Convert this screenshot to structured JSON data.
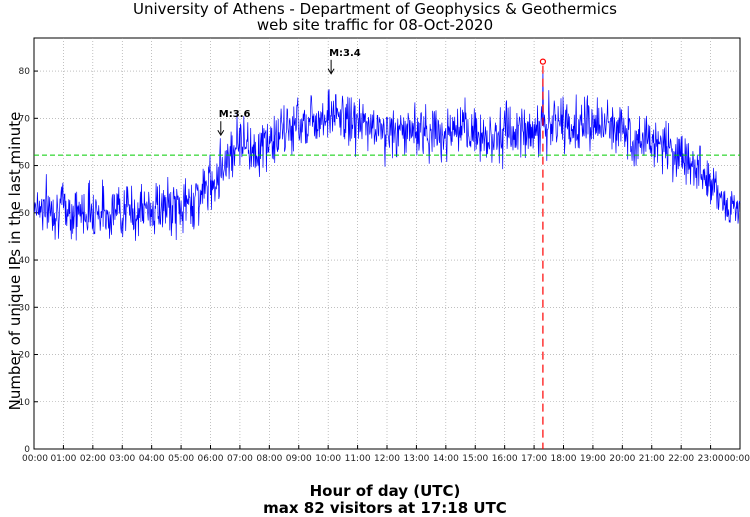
{
  "chart_data": {
    "type": "line",
    "title": "University of Athens - Department of Geophysics & Geothermics",
    "subtitle": "web site traffic for 08-Oct-2020",
    "xlabel": "Hour of day (UTC)",
    "xlabel_sub": "max 82 visitors at 17:18 UTC",
    "ylabel": "Number of unique IPs in the last minute",
    "ylim": [
      0,
      87
    ],
    "xlim": [
      0,
      24
    ],
    "yticks": [
      0,
      10,
      20,
      30,
      40,
      50,
      60,
      70,
      80
    ],
    "xticks": [
      "00:00",
      "01:00",
      "02:00",
      "03:00",
      "04:00",
      "05:00",
      "06:00",
      "07:00",
      "08:00",
      "09:00",
      "10:00",
      "11:00",
      "12:00",
      "13:00",
      "14:00",
      "15:00",
      "16:00",
      "17:00",
      "18:00",
      "19:00",
      "20:00",
      "21:00",
      "22:00",
      "23:00",
      "00:00"
    ],
    "grid": true,
    "series": [
      {
        "color": "#0000ff",
        "hours": [
          0,
          0.5,
          1,
          1.5,
          2,
          2.5,
          3,
          3.5,
          4,
          4.5,
          5,
          5.5,
          6,
          6.5,
          7,
          7.5,
          8,
          8.5,
          9,
          9.5,
          10,
          10.5,
          11,
          11.5,
          12,
          12.5,
          13,
          13.5,
          14,
          14.5,
          15,
          15.5,
          16,
          16.5,
          17,
          17.5,
          18,
          18.5,
          19,
          19.5,
          20,
          20.5,
          21,
          21.5,
          22,
          22.5,
          23,
          23.5,
          24
        ],
        "values": [
          52,
          51,
          51,
          50,
          51,
          50,
          51,
          50,
          51,
          51,
          51,
          53,
          56,
          61,
          66,
          63,
          65,
          67,
          69,
          70,
          71,
          70,
          69,
          68,
          67,
          67,
          68,
          67,
          67,
          67,
          67,
          66,
          67,
          67,
          68,
          68,
          69,
          68,
          69,
          68,
          68,
          66,
          65,
          64,
          62,
          60,
          57,
          52,
          50
        ],
        "noise_amplitude": 4
      },
      {
        "name": "",
        "color": "#00cc00",
        "style": "dashed",
        "values": [
          62.2
        ]
      }
    ],
    "max_marker": {
      "hour": 17.3,
      "value": 82,
      "color": "#ff0000"
    },
    "annotations": [
      {
        "label": "M:3.6",
        "hour": 6.35,
        "value": 66
      },
      {
        "label": "M:3.4",
        "hour": 10.1,
        "value": 79
      }
    ]
  }
}
